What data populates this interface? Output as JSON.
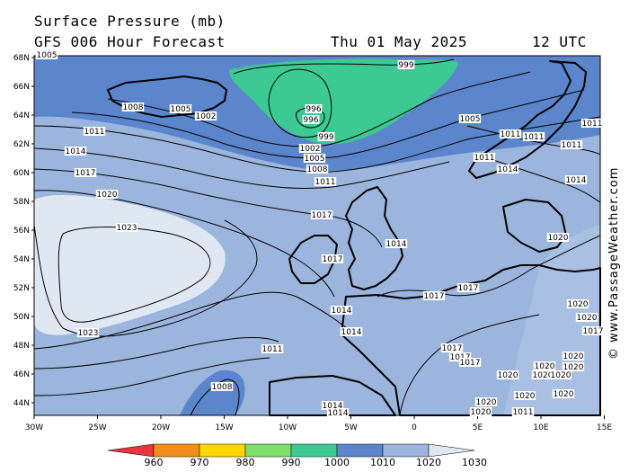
{
  "header": {
    "title": "Surface Pressure (mb)",
    "subtitle": "GFS 006 Hour Forecast",
    "date": "Thu 01 May 2025",
    "time": "12 UTC"
  },
  "watermark": "© www.PassageWeather.com",
  "axes": {
    "lat_ticks": [
      "68N",
      "66N",
      "64N",
      "62N",
      "60N",
      "58N",
      "56N",
      "54N",
      "52N",
      "50N",
      "48N",
      "46N",
      "44N"
    ],
    "lon_ticks": [
      "30W",
      "25W",
      "20W",
      "15W",
      "10W",
      "5W",
      "0",
      "5E",
      "10E",
      "15E"
    ]
  },
  "isobar_labels": [
    {
      "text": "1005"
    },
    {
      "text": "999"
    },
    {
      "text": "1008"
    },
    {
      "text": "1005"
    },
    {
      "text": "1002"
    },
    {
      "text": "996"
    },
    {
      "text": "996"
    },
    {
      "text": "999"
    },
    {
      "text": "1002"
    },
    {
      "text": "1005"
    },
    {
      "text": "1008"
    },
    {
      "text": "1005"
    },
    {
      "text": "1011"
    },
    {
      "text": "1014"
    },
    {
      "text": "1017"
    },
    {
      "text": "1011"
    },
    {
      "text": "1020"
    },
    {
      "text": "1023"
    },
    {
      "text": "1023"
    },
    {
      "text": "1017"
    },
    {
      "text": "1017"
    },
    {
      "text": "1014"
    },
    {
      "text": "1014"
    },
    {
      "text": "1017"
    },
    {
      "text": "1017"
    },
    {
      "text": "1014"
    },
    {
      "text": "1011"
    },
    {
      "text": "1008"
    },
    {
      "text": "1011"
    },
    {
      "text": "1011"
    },
    {
      "text": "1014"
    },
    {
      "text": "1011"
    },
    {
      "text": "1011"
    },
    {
      "text": "1011"
    },
    {
      "text": "1014"
    },
    {
      "text": "1020"
    },
    {
      "text": "1020"
    },
    {
      "text": "1020"
    },
    {
      "text": "1017"
    },
    {
      "text": "1017"
    },
    {
      "text": "1017"
    },
    {
      "text": "1017"
    },
    {
      "text": "1020"
    },
    {
      "text": "1020"
    },
    {
      "text": "1020"
    },
    {
      "text": "1020"
    },
    {
      "text": "1020"
    },
    {
      "text": "1020"
    },
    {
      "text": "1020"
    },
    {
      "text": "1020"
    },
    {
      "text": "1020"
    },
    {
      "text": "1014"
    },
    {
      "text": "1014"
    },
    {
      "text": "1011"
    },
    {
      "text": "1020"
    }
  ],
  "colorbar": {
    "labels": [
      "960",
      "970",
      "980",
      "990",
      "1000",
      "1010",
      "1020",
      "1030"
    ],
    "colors": [
      "#e8343b",
      "#f28c1a",
      "#ffd700",
      "#7ee06a",
      "#3cc994",
      "#5b86cc",
      "#9cb5dd",
      "#dfe7f3"
    ]
  },
  "colors": {
    "band_990": "#3cc994",
    "band_1000": "#5b86cc",
    "band_1010": "#9cb5dd",
    "band_1020": "#dfe7f3"
  }
}
